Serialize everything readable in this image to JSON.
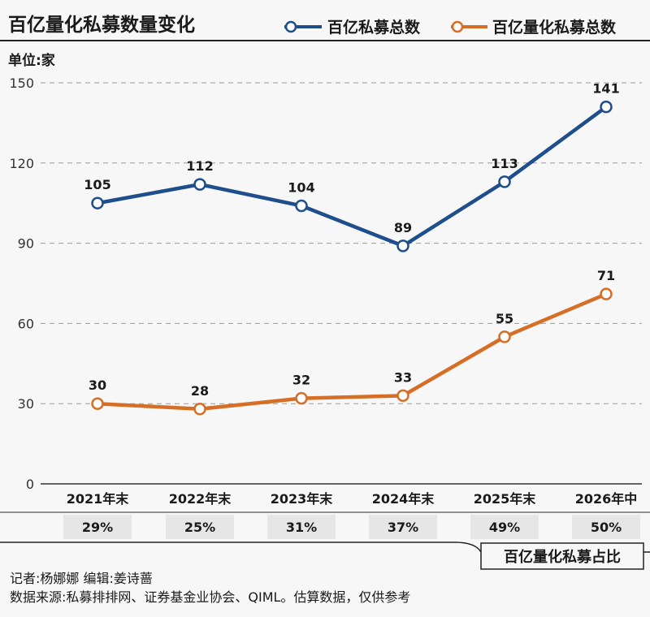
{
  "chart_data": {
    "type": "line",
    "title": "百亿量化私募数量变化",
    "unit": "单位:家",
    "categories": [
      "2021年末",
      "2022年末",
      "2023年末",
      "2024年末",
      "2025年末",
      "2026年中"
    ],
    "ylim": [
      0,
      150
    ],
    "yticks": [
      0,
      30,
      60,
      90,
      120,
      150
    ],
    "grid": "horizontal dashed",
    "legend_position": "top-right",
    "series": [
      {
        "name": "百亿私募总数",
        "color": "#1f4e8c",
        "values": [
          105,
          112,
          104,
          89,
          113,
          141
        ]
      },
      {
        "name": "百亿量化私募总数",
        "color": "#d66e26",
        "values": [
          30,
          28,
          32,
          33,
          55,
          71
        ]
      }
    ],
    "ratio": {
      "label": "百亿量化私募占比",
      "values": [
        "29%",
        "25%",
        "31%",
        "37%",
        "49%",
        "50%"
      ]
    }
  },
  "footer": {
    "reporter": "记者:杨娜娜   编辑:姜诗蔷",
    "source": "数据来源:私募排排网、证券基金业协会、QIML。估算数据，仅供参考"
  },
  "colors": {
    "background": "#f7f7f7",
    "grid": "#9a9a9a",
    "ratio_cell": "#e6e6e6"
  }
}
